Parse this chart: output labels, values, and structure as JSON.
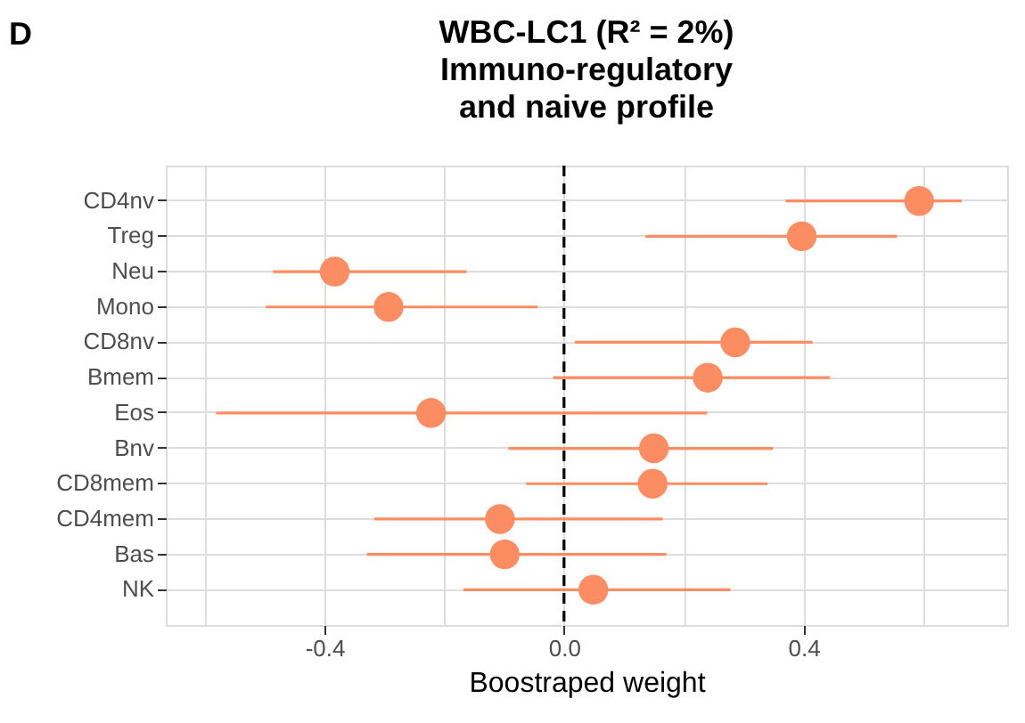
{
  "chart_data": {
    "type": "scatter",
    "title": "WBC-LC1 (R² = 2%)\nImmuno-regulatory\nand naive profile",
    "xlabel": "Boostraped weight",
    "annotations": [
      "D"
    ],
    "orientation": "horizontal",
    "marker": "circle",
    "categories": [
      "CD4nv",
      "Treg",
      "Neu",
      "Mono",
      "CD8nv",
      "Bmem",
      "Eos",
      "Bnv",
      "CD8mem",
      "CD4mem",
      "Bas",
      "NK"
    ],
    "series": [
      {
        "color": "#fc8d62",
        "values": [
          0.593,
          0.397,
          -0.383,
          -0.293,
          0.286,
          0.24,
          -0.222,
          0.15,
          0.148,
          -0.107,
          -0.099,
          0.049
        ],
        "errors": [
          [
            0.37,
            0.664
          ],
          [
            0.136,
            0.556
          ],
          [
            -0.486,
            -0.163
          ],
          [
            -0.498,
            -0.044
          ],
          [
            0.018,
            0.415
          ],
          [
            -0.018,
            0.444
          ],
          [
            -0.581,
            0.239
          ],
          [
            -0.093,
            0.349
          ],
          [
            -0.063,
            0.34
          ],
          [
            -0.317,
            0.165
          ],
          [
            -0.329,
            0.171
          ],
          [
            -0.168,
            0.278
          ]
        ]
      }
    ],
    "xlim": [
      -0.665,
      0.74
    ],
    "xticks": [
      {
        "value": -0.6,
        "label": null
      },
      -0.4,
      {
        "value": -0.2,
        "label": null
      },
      {
        "value": 0,
        "label": "0.0"
      },
      {
        "value": 0.2,
        "label": null
      },
      0.4,
      {
        "value": 0.6,
        "label": null
      }
    ],
    "ref_lines": [
      {
        "axis": "x",
        "value": 0,
        "color": "#000000",
        "line_style": "dashed"
      }
    ],
    "grid": true
  }
}
